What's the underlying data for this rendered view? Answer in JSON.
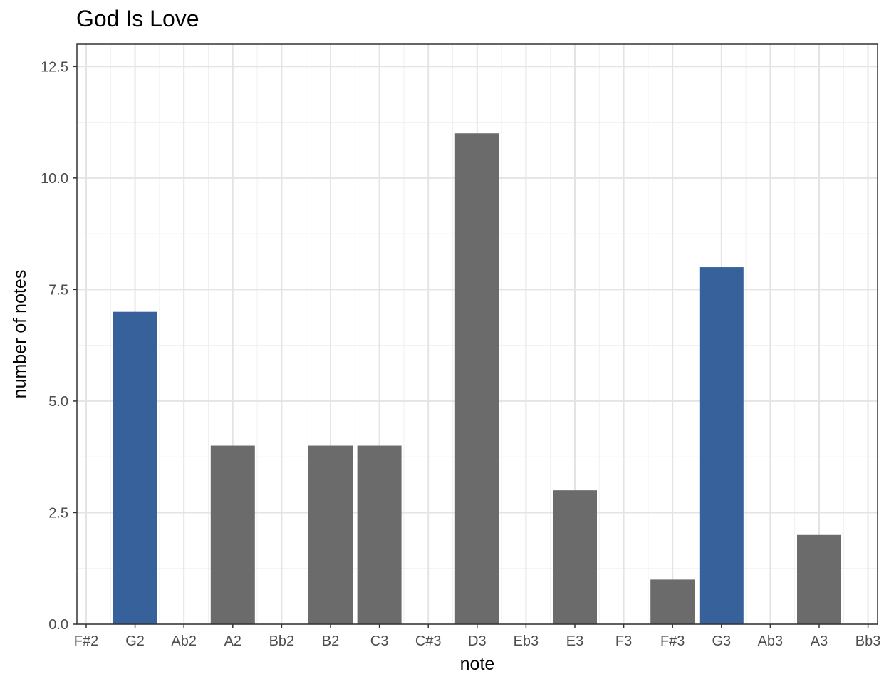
{
  "chart_data": {
    "type": "bar",
    "title": "God Is Love",
    "xlabel": "note",
    "ylabel": "number of notes",
    "categories": [
      "F#2",
      "G2",
      "Ab2",
      "A2",
      "Bb2",
      "B2",
      "C3",
      "C#3",
      "D3",
      "Eb3",
      "E3",
      "F3",
      "F#3",
      "G3",
      "Ab3",
      "A3",
      "Bb3"
    ],
    "values": [
      0,
      7,
      0,
      4,
      0,
      4,
      4,
      0,
      11,
      0,
      3,
      0,
      1,
      8,
      0,
      2,
      0
    ],
    "highlighted": [
      "G2",
      "G3"
    ],
    "colors": {
      "highlight": "#36619A",
      "default": "#6B6B6B",
      "grid_major": "#E4E4E4",
      "grid_minor": "#F0F0F0",
      "border": "#333333"
    },
    "y_ticks": [
      "0.0",
      "2.5",
      "5.0",
      "7.5",
      "10.0",
      "12.5"
    ],
    "ylim": [
      0,
      13
    ],
    "grid": true,
    "legend": "none"
  }
}
